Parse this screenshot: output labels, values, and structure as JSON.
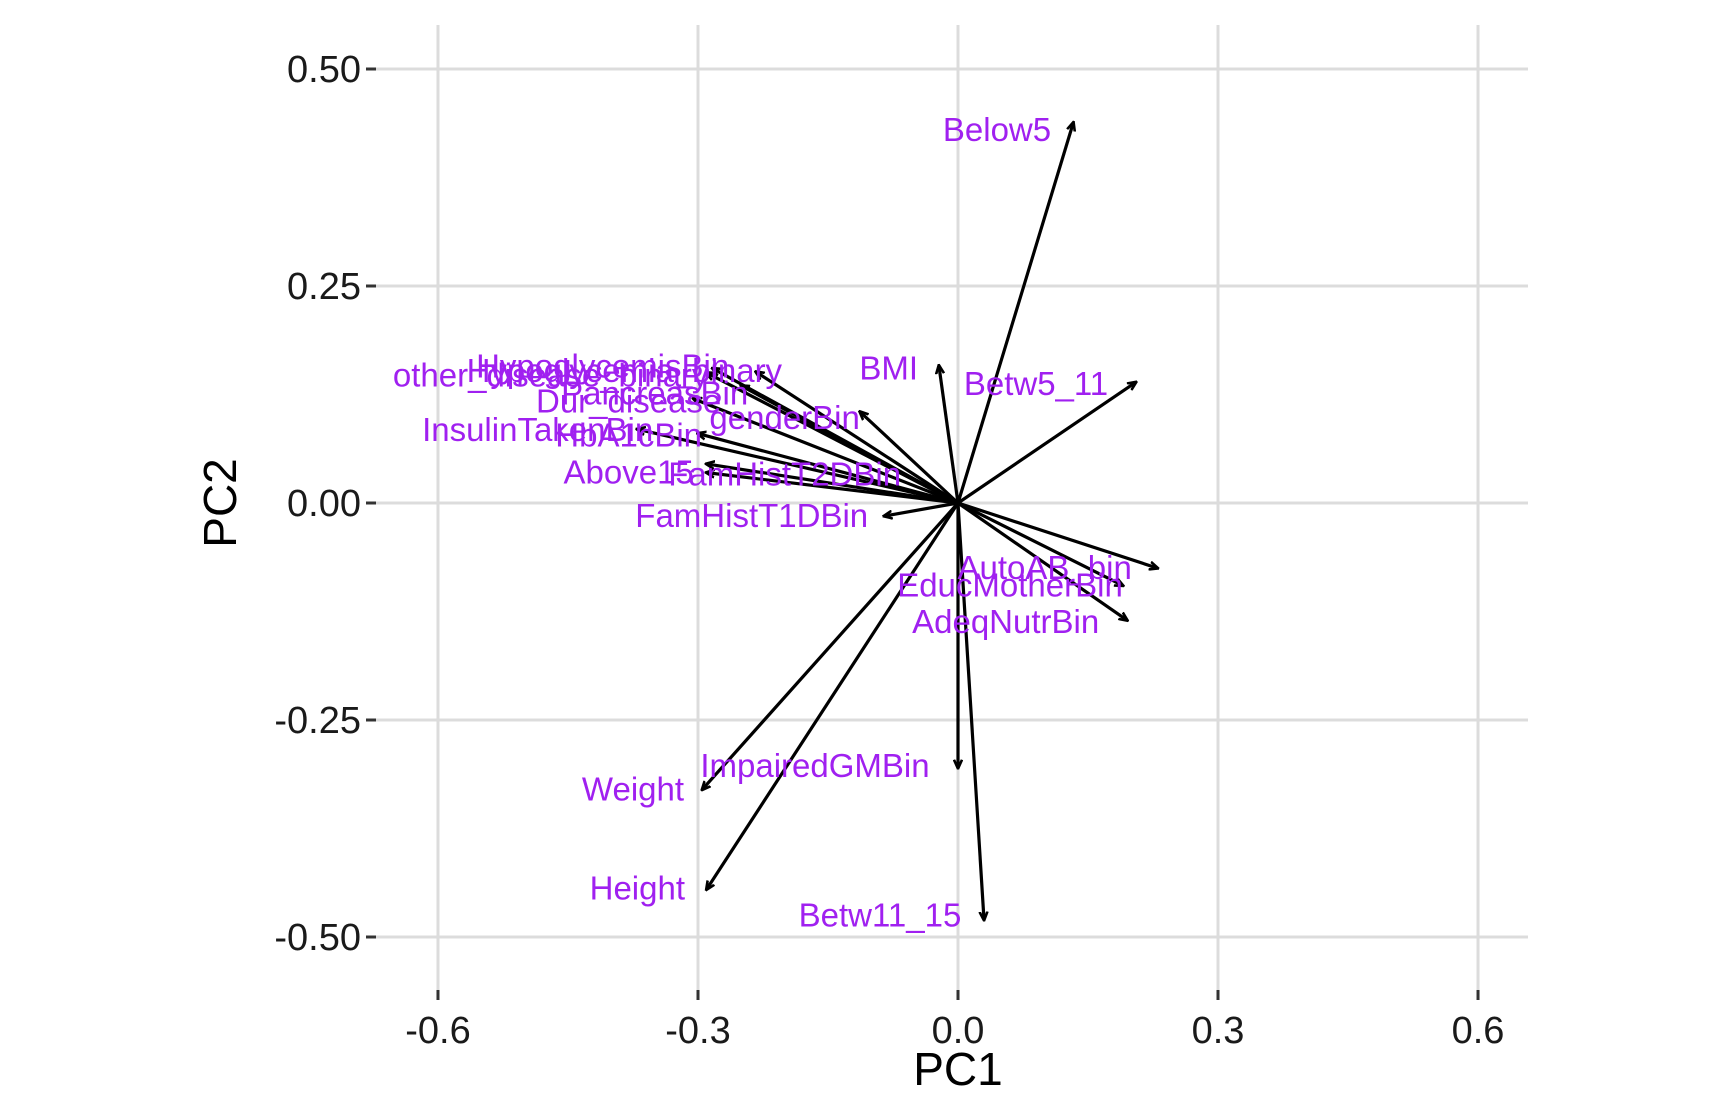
{
  "chart_data": {
    "type": "biplot-loadings",
    "xlabel": "PC1",
    "ylabel": "PC2",
    "xlim": [
      -0.66,
      0.66
    ],
    "ylim": [
      -0.56,
      0.55
    ],
    "x_ticks": [
      -0.6,
      -0.3,
      0.0,
      0.3,
      0.6
    ],
    "x_tick_labels": [
      "-0.6",
      "-0.3",
      "0.0",
      "0.3",
      "0.6"
    ],
    "y_ticks": [
      0.5,
      0.25,
      0.0,
      -0.25,
      -0.5
    ],
    "y_tick_labels": [
      "0.50",
      "0.25",
      "0.00",
      "-0.25",
      "-0.50"
    ],
    "grid": true,
    "label_color": "#a020f0",
    "arrow_color": "#000000",
    "origin": [
      0,
      0
    ],
    "vectors": [
      {
        "name": "Below5",
        "x": 0.133,
        "y": 0.438
      },
      {
        "name": "BMI",
        "x": -0.022,
        "y": 0.158
      },
      {
        "name": "Betw5_11",
        "x": 0.205,
        "y": 0.139
      },
      {
        "name": "Hypoglycemia_binary",
        "x": -0.233,
        "y": 0.151
      },
      {
        "name": "HypoglycemisBin",
        "x": -0.283,
        "y": 0.155
      },
      {
        "name": "Other_disease_binary",
        "x": -0.29,
        "y": 0.15
      },
      {
        "name": "PancreasBin",
        "x": -0.25,
        "y": 0.135
      },
      {
        "name": "Dur_disease",
        "x": -0.305,
        "y": 0.12
      },
      {
        "name": "genderBin",
        "x": -0.113,
        "y": 0.105
      },
      {
        "name": "InsulinTakenBin",
        "x": -0.37,
        "y": 0.085
      },
      {
        "name": "HbA1cBin",
        "x": -0.3,
        "y": 0.08
      },
      {
        "name": "Above15",
        "x": -0.29,
        "y": 0.035
      },
      {
        "name": "FamHistT2DBin",
        "x": -0.29,
        "y": 0.045
      },
      {
        "name": "FamHistT1DBin",
        "x": -0.085,
        "y": -0.015
      },
      {
        "name": "AutoAB_bin",
        "x": 0.23,
        "y": -0.075
      },
      {
        "name": "EducMotherBin",
        "x": 0.19,
        "y": -0.095
      },
      {
        "name": "AdeqNutrBin",
        "x": 0.195,
        "y": -0.135
      },
      {
        "name": "ImpairedGMBin",
        "x": 0.0,
        "y": -0.305
      },
      {
        "name": "Weight",
        "x": -0.295,
        "y": -0.33
      },
      {
        "name": "Height",
        "x": -0.29,
        "y": -0.445
      },
      {
        "name": "Betw11_15",
        "x": 0.03,
        "y": -0.48
      }
    ],
    "labels": [
      {
        "text": "Below5",
        "x": 0.045,
        "y": 0.43
      },
      {
        "text": "BMI",
        "x": -0.08,
        "y": 0.155
      },
      {
        "text": "Betw5_11",
        "x": 0.09,
        "y": 0.137
      },
      {
        "text": "Hypoglycemia_binary",
        "x": -0.385,
        "y": 0.152
      },
      {
        "text": "HypoglycemisBin",
        "x": -0.41,
        "y": 0.157
      },
      {
        "text": "other_disease_binary",
        "x": -0.47,
        "y": 0.147
      },
      {
        "text": "PancreasBin",
        "x": -0.35,
        "y": 0.126
      },
      {
        "text": "Dur_disease",
        "x": -0.38,
        "y": 0.117
      },
      {
        "text": "genderBin",
        "x": -0.2,
        "y": 0.098
      },
      {
        "text": "InsulinTakenBin",
        "x": -0.485,
        "y": 0.084
      },
      {
        "text": "HbA1cBin",
        "x": -0.38,
        "y": 0.078
      },
      {
        "text": "Above15",
        "x": -0.38,
        "y": 0.035
      },
      {
        "text": "FamHistT2DBin",
        "x": -0.2,
        "y": 0.033
      },
      {
        "text": "FamHistT1DBin",
        "x": -0.238,
        "y": -0.015
      },
      {
        "text": "AutoAB_bin",
        "x": 0.1,
        "y": -0.075
      },
      {
        "text": "EducMotherBin",
        "x": 0.06,
        "y": -0.095
      },
      {
        "text": "AdeqNutrBin",
        "x": 0.055,
        "y": -0.137
      },
      {
        "text": "ImpairedGMBin",
        "x": -0.165,
        "y": -0.303
      },
      {
        "text": "Weight",
        "x": -0.375,
        "y": -0.33
      },
      {
        "text": "Height",
        "x": -0.37,
        "y": -0.444
      },
      {
        "text": "Betw11_15",
        "x": -0.09,
        "y": -0.475
      }
    ]
  }
}
